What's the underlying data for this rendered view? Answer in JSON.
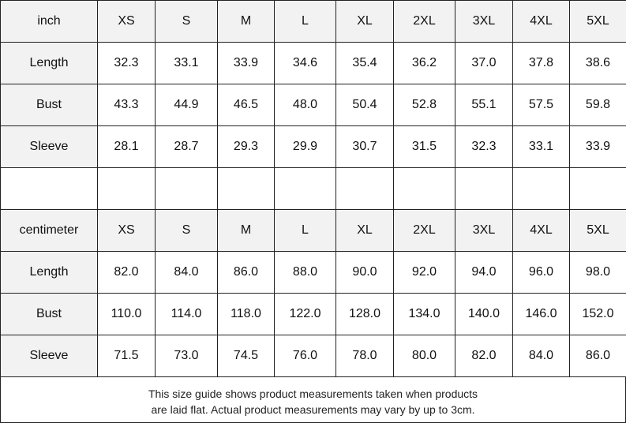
{
  "inch_table": {
    "header": [
      "inch",
      "XS",
      "S",
      "M",
      "L",
      "XL",
      "2XL",
      "3XL",
      "4XL",
      "5XL"
    ],
    "rows": [
      [
        "Length",
        "32.3",
        "33.1",
        "33.9",
        "34.6",
        "35.4",
        "36.2",
        "37.0",
        "37.8",
        "38.6"
      ],
      [
        "Bust",
        "43.3",
        "44.9",
        "46.5",
        "48.0",
        "50.4",
        "52.8",
        "55.1",
        "57.5",
        "59.8"
      ],
      [
        "Sleeve",
        "28.1",
        "28.7",
        "29.3",
        "29.9",
        "30.7",
        "31.5",
        "32.3",
        "33.1",
        "33.9"
      ]
    ]
  },
  "cm_table": {
    "header": [
      "centimeter",
      "XS",
      "S",
      "M",
      "L",
      "XL",
      "2XL",
      "3XL",
      "4XL",
      "5XL"
    ],
    "rows": [
      [
        "Length",
        "82.0",
        "84.0",
        "86.0",
        "88.0",
        "90.0",
        "92.0",
        "94.0",
        "96.0",
        "98.0"
      ],
      [
        "Bust",
        "110.0",
        "114.0",
        "118.0",
        "122.0",
        "128.0",
        "134.0",
        "140.0",
        "146.0",
        "152.0"
      ],
      [
        "Sleeve",
        "71.5",
        "73.0",
        "74.5",
        "76.0",
        "78.0",
        "80.0",
        "82.0",
        "84.0",
        "86.0"
      ]
    ]
  },
  "note": {
    "lines": [
      "This size guide shows product measurements taken when products",
      "are laid flat. Actual product measurements may vary by up to 3cm."
    ]
  }
}
